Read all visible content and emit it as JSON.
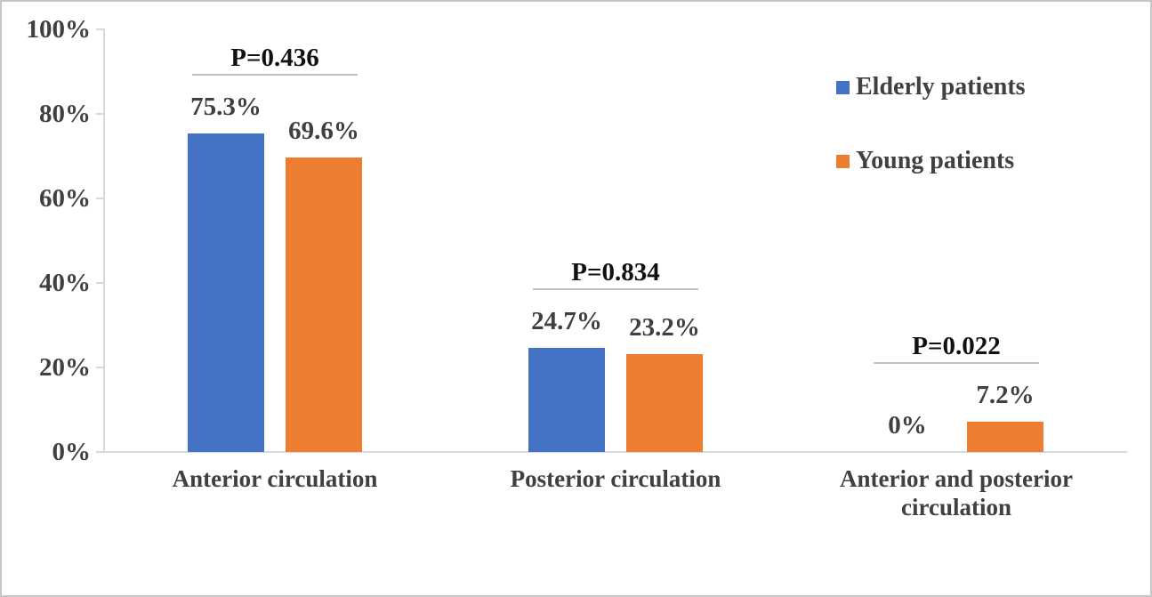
{
  "chart_data": {
    "type": "bar",
    "title": "",
    "categories": [
      "Anterior circulation",
      "Posterior circulation",
      "Anterior and posterior circulation"
    ],
    "series": [
      {
        "name": "Elderly patients",
        "color": "#4472C4",
        "values": [
          75.3,
          24.7,
          0
        ],
        "value_labels": [
          "75.3%",
          "24.7%",
          "0%"
        ]
      },
      {
        "name": "Young patients",
        "color": "#ED7D31",
        "values": [
          69.6,
          23.2,
          7.2
        ],
        "value_labels": [
          "69.6%",
          "23.2%",
          "7.2%"
        ]
      }
    ],
    "annotations": {
      "p_values": [
        "P=0.436",
        "P=0.834",
        "P=0.022"
      ]
    },
    "y_axis": {
      "min": 0,
      "max": 100,
      "tick_labels": [
        "0%",
        "20%",
        "40%",
        "60%",
        "80%",
        "100%"
      ],
      "tick_values": [
        0,
        20,
        40,
        60,
        80,
        100
      ]
    },
    "xlabel": "",
    "ylabel": "",
    "grid": false,
    "legend": {
      "position": "top-right",
      "entries": [
        "Elderly patients",
        "Young patients"
      ]
    }
  },
  "colors": {
    "elderly_series": "#4472C4",
    "young_series": "#ED7D31",
    "text": "#404040",
    "p_value_text": "#111111",
    "axis_line": "#D9D9D9",
    "p_line": "#BFBFBF",
    "frame_border": "#C6C6C6",
    "background": "#FFFFFF"
  }
}
